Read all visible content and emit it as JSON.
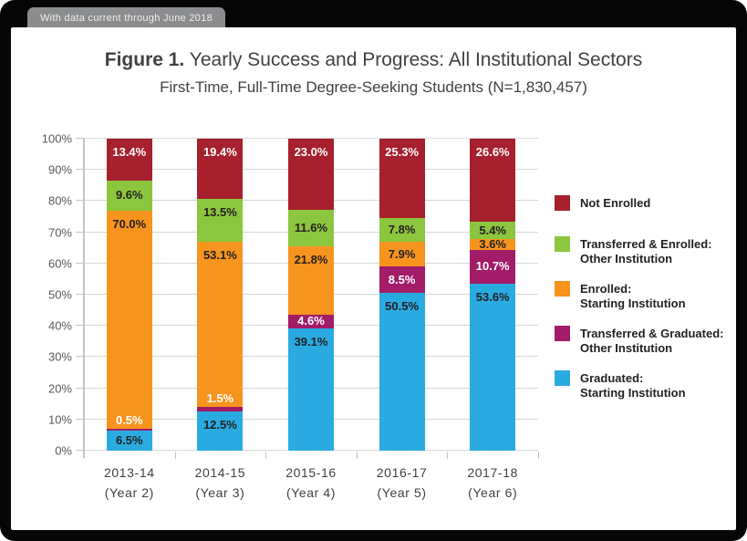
{
  "banner": {
    "text": "With data current through June 2018"
  },
  "header": {
    "figure_label": "Figure 1.",
    "title": "Yearly Success and Progress: All Institutional Sectors",
    "subtitle": "First-Time, Full-Time Degree-Seeking Students (N=1,830,457)"
  },
  "chart_data": {
    "type": "bar",
    "stacked": true,
    "title": "Figure 1. Yearly Success and Progress: All Institutional Sectors",
    "subtitle": "First-Time, Full-Time Degree-Seeking Students (N=1,830,457)",
    "grid": true,
    "legend_position": "right",
    "categories": [
      {
        "year": "2013-14",
        "cohort": "(Year 2)"
      },
      {
        "year": "2014-15",
        "cohort": "(Year 3)"
      },
      {
        "year": "2015-16",
        "cohort": "(Year 4)"
      },
      {
        "year": "2016-17",
        "cohort": "(Year 5)"
      },
      {
        "year": "2017-18",
        "cohort": "(Year 6)"
      }
    ],
    "y_axis": {
      "min": 0,
      "max": 100,
      "step": 10,
      "unit": "%",
      "tick_labels": [
        "0%",
        "10%",
        "20%",
        "30%",
        "40%",
        "50%",
        "60%",
        "70%",
        "80%",
        "90%",
        "100%"
      ]
    },
    "series": [
      {
        "key": "graduated-starting",
        "name": "Graduated: Starting Institution",
        "color": "#29ABE2",
        "label_color": "#231F20",
        "values": [
          6.5,
          12.5,
          39.1,
          50.5,
          53.6
        ]
      },
      {
        "key": "transferred-graduated-other",
        "name": "Transferred & Graduated: Other Institution",
        "color": "#A21C68",
        "label_color": "#FFFFFF",
        "values": [
          0.5,
          1.5,
          4.6,
          8.5,
          10.7
        ]
      },
      {
        "key": "enrolled-starting",
        "name": "Enrolled: Starting Institution",
        "color": "#F7941E",
        "label_color": "#231F20",
        "values": [
          70.0,
          53.1,
          21.8,
          7.9,
          3.6
        ]
      },
      {
        "key": "transferred-enrolled-other",
        "name": "Transferred & Enrolled: Other Institution",
        "color": "#8CC63F",
        "label_color": "#231F20",
        "values": [
          9.6,
          13.5,
          11.6,
          7.8,
          5.4
        ]
      },
      {
        "key": "not-enrolled",
        "name": "Not Enrolled",
        "color": "#A6202E",
        "label_color": "#FFFFFF",
        "values": [
          13.4,
          19.4,
          23.0,
          25.3,
          26.6
        ]
      }
    ],
    "legend": [
      {
        "key": "not-enrolled",
        "color": "#A6202E",
        "lines": [
          "Not Enrolled"
        ]
      },
      {
        "key": "transferred-enrolled-other",
        "color": "#8CC63F",
        "lines": [
          "Transferred & Enrolled:",
          "Other Institution"
        ]
      },
      {
        "key": "enrolled-starting",
        "color": "#F7941E",
        "lines": [
          "Enrolled:",
          "Starting Institution"
        ]
      },
      {
        "key": "transferred-graduated-other",
        "color": "#A21C68",
        "lines": [
          "Transferred & Graduated:",
          "Other Institution"
        ]
      },
      {
        "key": "graduated-starting",
        "color": "#29ABE2",
        "lines": [
          "Graduated:",
          "Starting Institution"
        ]
      }
    ]
  }
}
